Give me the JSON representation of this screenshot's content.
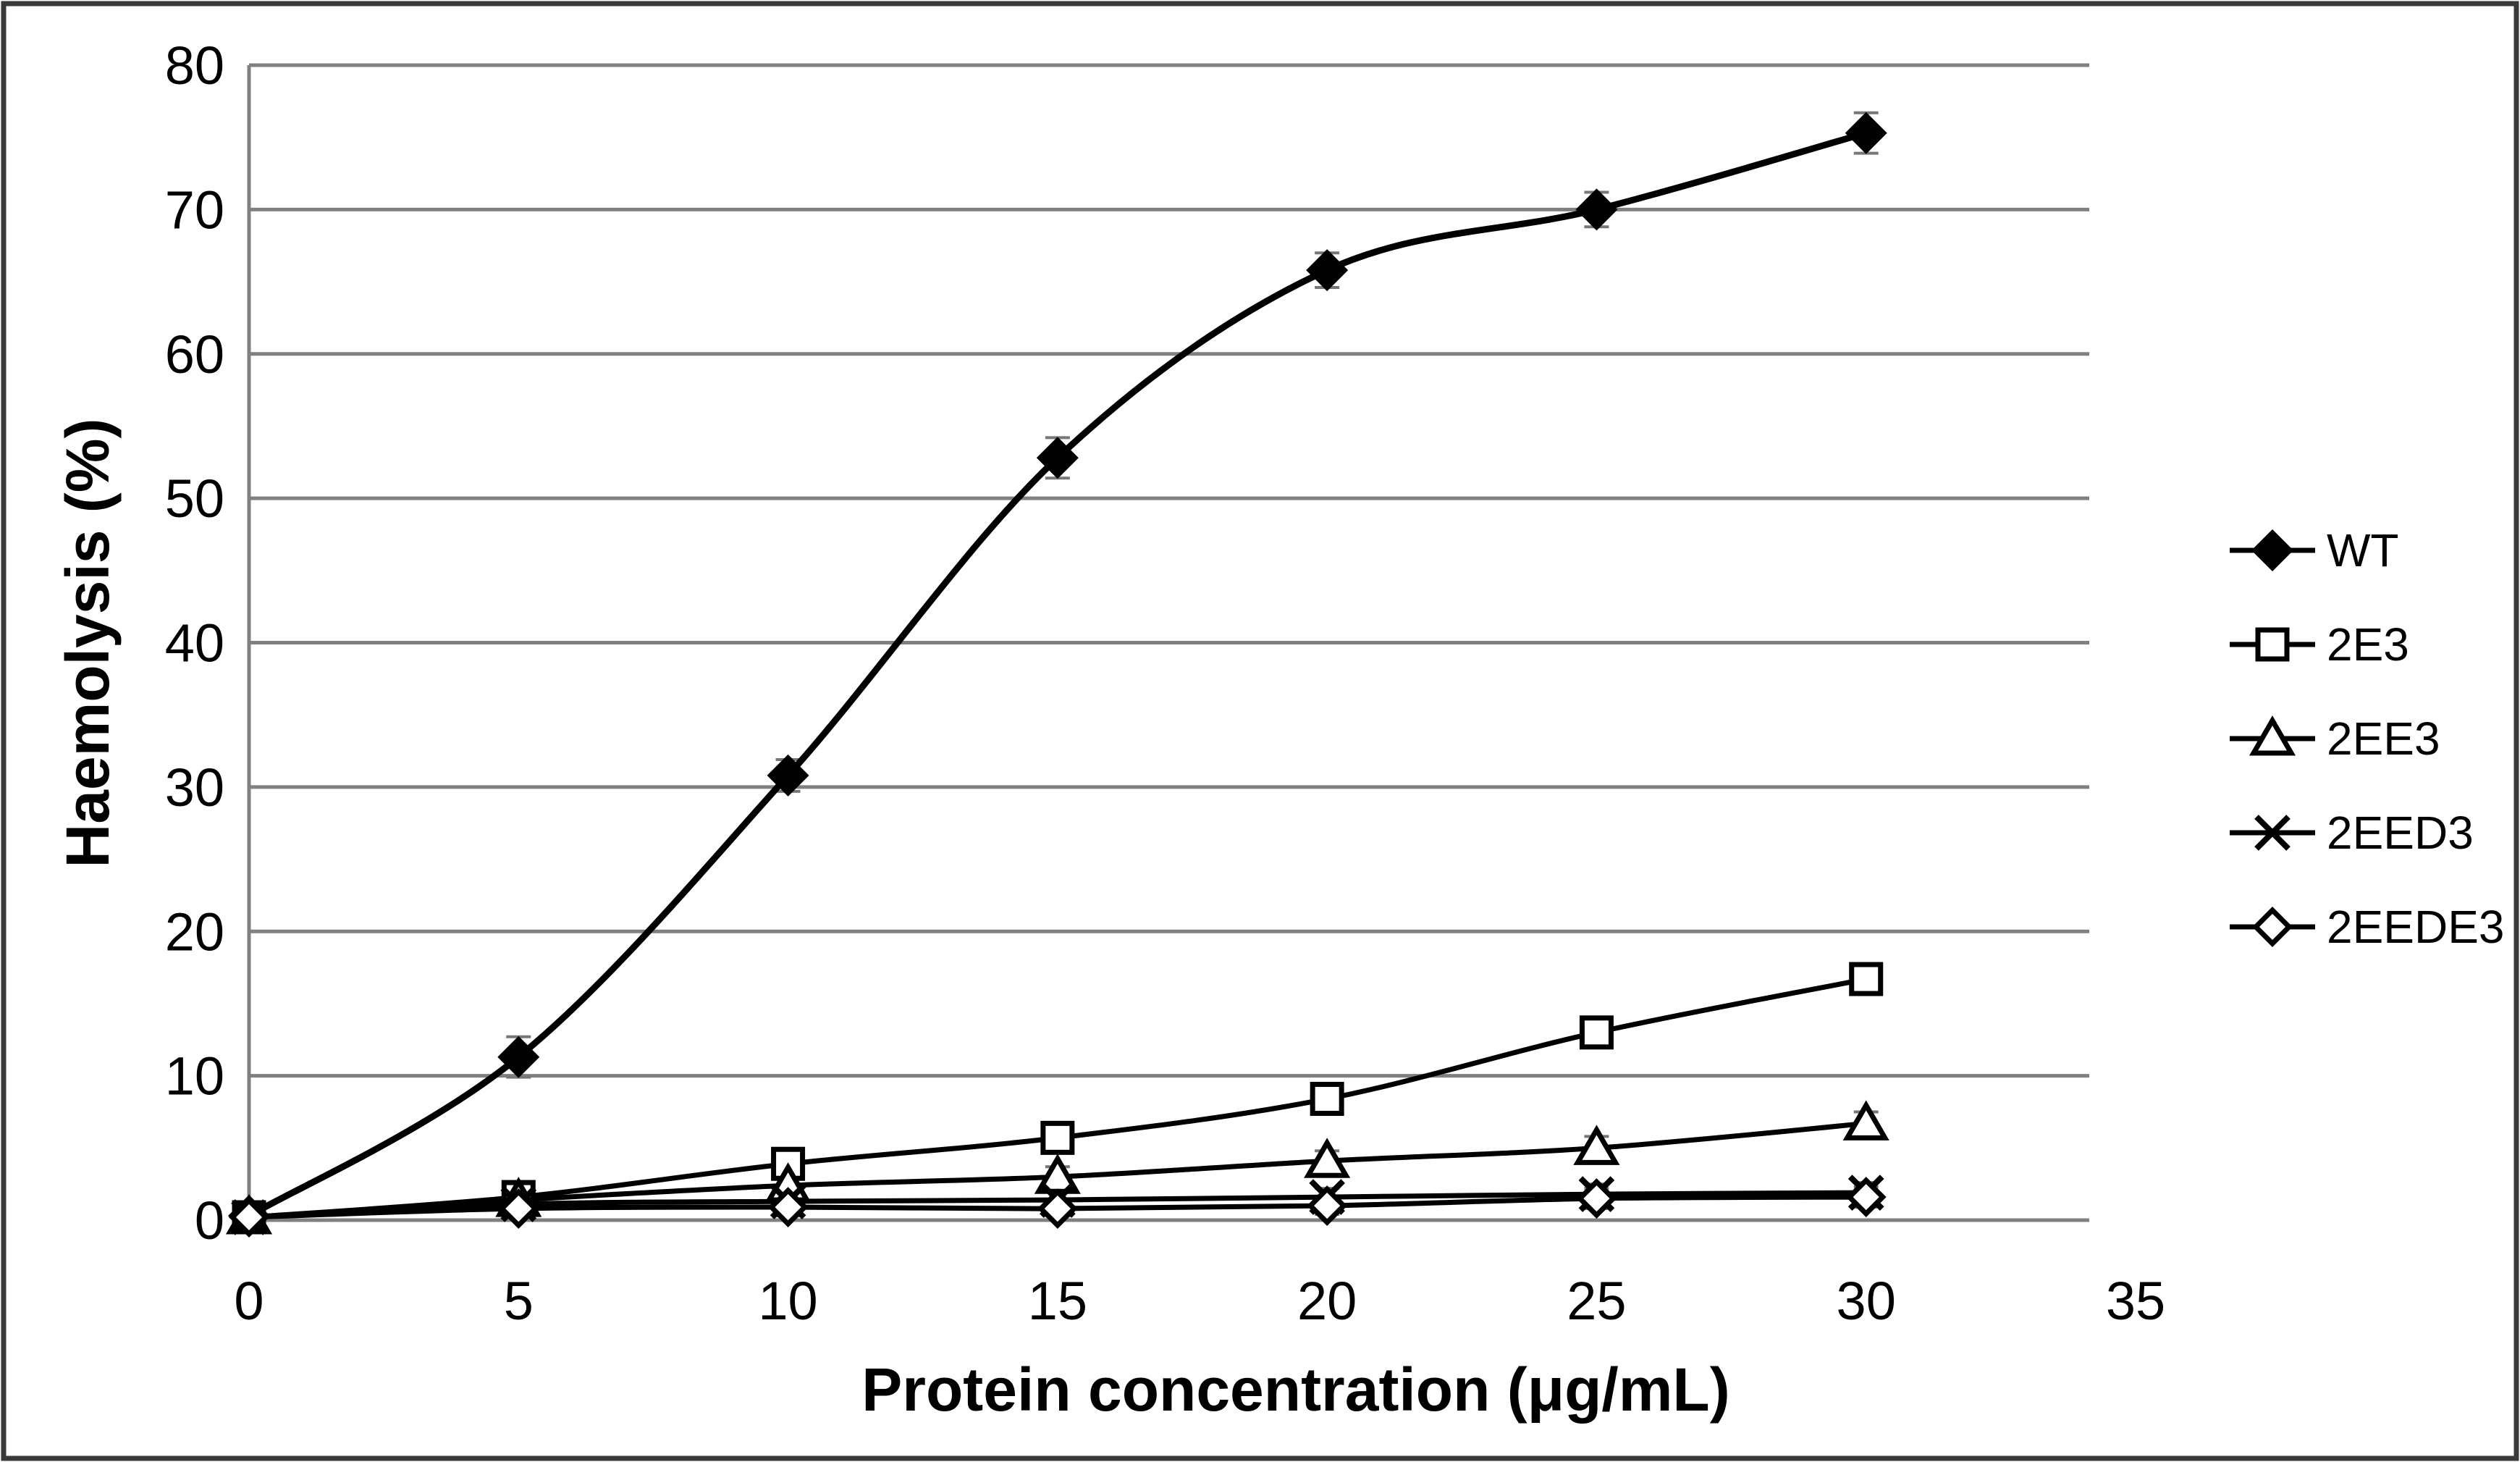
{
  "figure": {
    "background": "#ffffff",
    "border_color": "#3a3a3a",
    "gridline_color": "#808080",
    "series_color": "#000000",
    "error_bar_color": "#777777"
  },
  "chart_data": {
    "type": "line",
    "title": "",
    "xlabel": "Protein concentration (μg/mL)",
    "ylabel": "Haemolysis (%)",
    "xlim": [
      0,
      35
    ],
    "ylim": [
      0,
      80
    ],
    "x_ticks": [
      0,
      5,
      10,
      15,
      20,
      25,
      30,
      35
    ],
    "y_ticks": [
      0,
      10,
      20,
      30,
      40,
      50,
      60,
      70,
      80
    ],
    "grid": "horizontal",
    "legend_position": "right",
    "x": [
      0,
      5,
      10,
      15,
      20,
      25,
      30
    ],
    "series": [
      {
        "name": "WT",
        "marker": "filled-diamond",
        "values": [
          0.3,
          11.3,
          30.8,
          52.8,
          65.8,
          70.0,
          75.3
        ],
        "errors": [
          0.7,
          1.4,
          1.1,
          1.4,
          1.2,
          1.2,
          1.4
        ]
      },
      {
        "name": "2E3",
        "marker": "open-square",
        "values": [
          0.2,
          1.6,
          3.9,
          5.7,
          8.4,
          13.0,
          16.7
        ],
        "errors": [
          0.5,
          0.8,
          0.9,
          0.8,
          0.9,
          1.0,
          1.0
        ]
      },
      {
        "name": "2EE3",
        "marker": "open-triangle",
        "values": [
          0.2,
          1.4,
          2.4,
          3.0,
          4.1,
          5.0,
          6.7
        ],
        "errors": [
          0.4,
          0.7,
          0.8,
          0.7,
          0.7,
          0.8,
          0.8
        ]
      },
      {
        "name": "2EED3",
        "marker": "x-cross",
        "values": [
          0.2,
          1.1,
          1.3,
          1.4,
          1.6,
          1.8,
          1.9
        ],
        "errors": [
          0.4,
          0.7,
          0.7,
          0.6,
          0.6,
          0.7,
          0.7
        ]
      },
      {
        "name": "2EEDE3",
        "marker": "open-diamond",
        "values": [
          0.2,
          0.8,
          0.9,
          0.8,
          1.0,
          1.5,
          1.6
        ],
        "errors": [
          0.4,
          0.6,
          0.6,
          0.5,
          0.6,
          0.7,
          0.7
        ]
      }
    ]
  }
}
